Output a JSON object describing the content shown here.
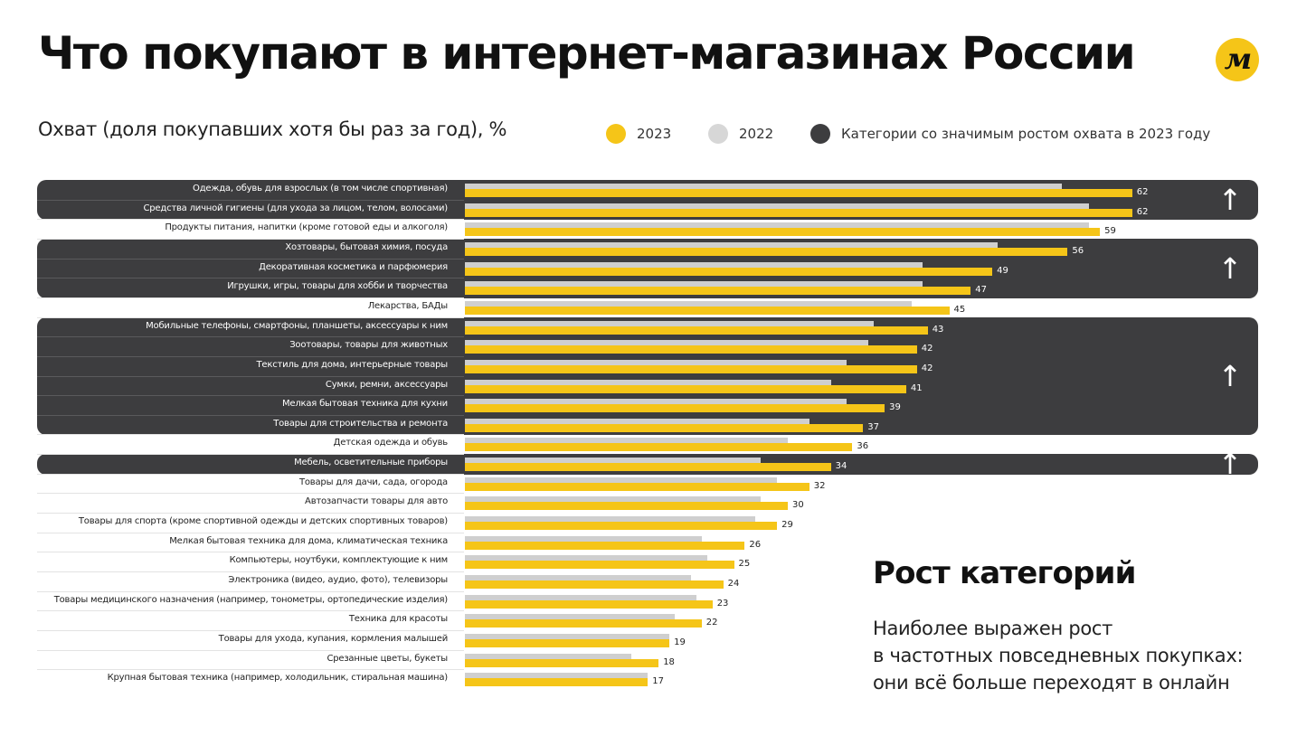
{
  "header": {
    "title": "Что покупают в интернет-магазинах России",
    "logo_text": "м"
  },
  "colors": {
    "y2023": "#f5c518",
    "y2022": "#cfcfcf",
    "highlight": "#3d3d3f"
  },
  "icons": {
    "logo": "yandex-market-logo",
    "growth_arrow": "arrow-up-icon"
  },
  "growth_arrow_glyph": "↑",
  "chart_data": {
    "type": "bar",
    "orientation": "horizontal",
    "title": "Охват (доля покупавших хотя бы раз за год), %",
    "legend": [
      "2023",
      "2022",
      "Категории со значимым ростом охвата в 2023 году"
    ],
    "legend_placement": "top",
    "xlim": [
      0,
      100
    ],
    "categories": [
      "Одежда, обувь для взрослых (в том числе спортивная)",
      "Средства личной гигиены (для ухода за лицом, телом, волосами)",
      "Продукты питания, напитки (кроме готовой еды и алкоголя)",
      "Хозтовары, бытовая химия, посуда",
      "Декоративная косметика и парфюмерия",
      "Игрушки, игры, товары для хобби и творчества",
      "Лекарства, БАДы",
      "Мобильные телефоны, смартфоны, планшеты, аксессуары к ним",
      "Зоотовары, товары для животных",
      "Текстиль для дома, интерьерные товары",
      "Сумки, ремни, аксессуары",
      "Мелкая бытовая техника для кухни",
      "Товары для строительства и ремонта",
      "Детская одежда и обувь",
      "Мебель, осветительные приборы",
      "Товары для дачи, сада, огорода",
      "Автозапчасти товары для авто",
      "Товары для спорта (кроме спортивной одежды и детских спортивных товаров)",
      "Мелкая бытовая техника для дома, климатическая техника",
      "Компьютеры, ноутбуки, комплектующие к ним",
      "Электроника (видео, аудио, фото), телевизоры",
      "Товары медицинского назначения (например, тонометры, ортопедические изделия)",
      "Техника для красоты",
      "Товары для ухода, купания, кормления малышей",
      "Срезанные цветы, букеты",
      "Крупная бытовая техника (например, холодильник, стиральная машина)"
    ],
    "series": [
      {
        "name": "2023",
        "values": [
          62,
          62,
          59,
          56,
          49,
          47,
          45,
          43,
          42,
          42,
          41,
          39,
          37,
          36,
          34,
          32,
          30,
          29,
          26,
          25,
          24,
          23,
          22,
          19,
          18,
          17
        ]
      },
      {
        "name": "2022",
        "values": [
          55.5,
          58,
          58,
          49.5,
          42.5,
          42.5,
          41.5,
          38,
          37.5,
          35.5,
          34,
          35.5,
          32,
          30,
          27.5,
          29,
          27.5,
          27,
          22,
          22.5,
          21,
          21.5,
          19.5,
          19,
          15.5,
          17
        ]
      }
    ],
    "significant_growth_groups": [
      [
        0,
        1
      ],
      [
        3,
        4,
        5
      ],
      [
        7,
        8,
        9,
        10,
        11,
        12
      ],
      [
        14
      ]
    ]
  },
  "conclusion": {
    "title": "Рост категорий",
    "lines": [
      "Наиболее выражен рост",
      "в частотных повседневных покупках:",
      "они всё больше переходят в онлайн"
    ]
  }
}
